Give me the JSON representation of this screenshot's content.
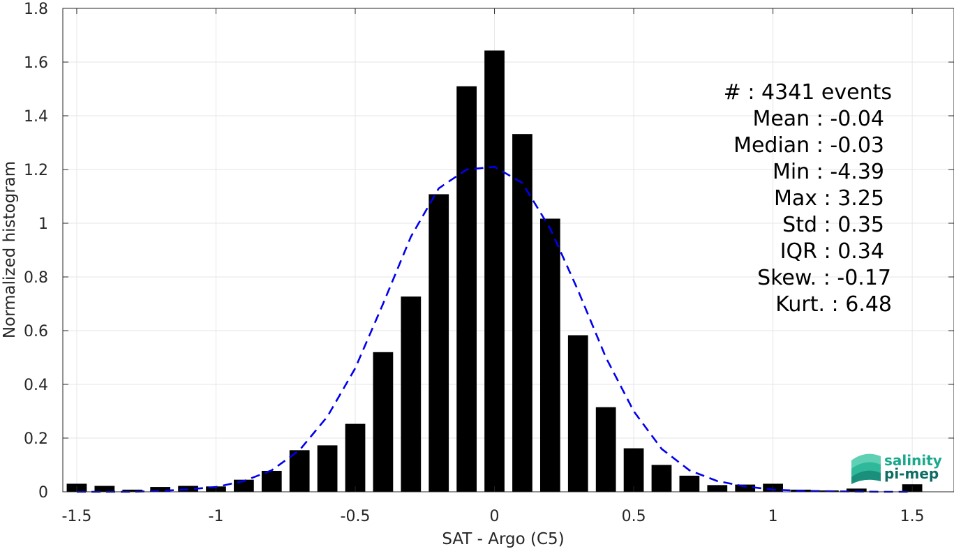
{
  "chart_data": {
    "type": "bar",
    "xlabel": "SAT - Argo (C5)",
    "ylabel": "Normalized histogram",
    "xlim": [
      -1.55,
      1.65
    ],
    "ylim": [
      0,
      1.8
    ],
    "xticks": [
      -1.5,
      -1,
      -0.5,
      0,
      0.5,
      1,
      1.5
    ],
    "xtick_labels": [
      "-1.5",
      "-1",
      "-0.5",
      "0",
      "0.5",
      "1",
      "1.5"
    ],
    "yticks": [
      0,
      0.2,
      0.4,
      0.6,
      0.8,
      1,
      1.2,
      1.4,
      1.6,
      1.8
    ],
    "ytick_labels": [
      "0",
      "0.2",
      "0.4",
      "0.6",
      "0.8",
      "1",
      "1.2",
      "1.4",
      "1.6",
      "1.8"
    ],
    "grid": true,
    "bar_color": "#000000",
    "bars": {
      "x": [
        -1.5,
        -1.4,
        -1.3,
        -1.2,
        -1.1,
        -1.0,
        -0.9,
        -0.8,
        -0.7,
        -0.6,
        -0.5,
        -0.4,
        -0.3,
        -0.2,
        -0.1,
        0.0,
        0.1,
        0.2,
        0.3,
        0.4,
        0.5,
        0.6,
        0.7,
        0.8,
        0.9,
        1.0,
        1.1,
        1.2,
        1.3,
        1.5
      ],
      "values": [
        0.03,
        0.022,
        0.008,
        0.018,
        0.022,
        0.02,
        0.045,
        0.078,
        0.155,
        0.173,
        0.253,
        0.52,
        0.727,
        1.108,
        1.51,
        1.643,
        1.332,
        1.017,
        0.583,
        0.315,
        0.162,
        0.1,
        0.06,
        0.025,
        0.027,
        0.03,
        0.008,
        0.005,
        0.012,
        0.028
      ]
    },
    "fit_curve": {
      "color": "#0000ee",
      "style": "dashed",
      "x": [
        -1.5,
        -1.4,
        -1.3,
        -1.2,
        -1.1,
        -1.0,
        -0.9,
        -0.8,
        -0.7,
        -0.6,
        -0.5,
        -0.4,
        -0.3,
        -0.2,
        -0.1,
        0.0,
        0.1,
        0.2,
        0.3,
        0.4,
        0.5,
        0.6,
        0.7,
        0.8,
        0.9,
        1.0,
        1.1,
        1.2,
        1.3,
        1.4,
        1.5
      ],
      "y": [
        0.0,
        0.0,
        0.0,
        0.003,
        0.009,
        0.018,
        0.04,
        0.08,
        0.155,
        0.28,
        0.46,
        0.7,
        0.95,
        1.13,
        1.2,
        1.21,
        1.15,
        0.98,
        0.75,
        0.5,
        0.3,
        0.16,
        0.08,
        0.04,
        0.02,
        0.008,
        0.004,
        0.002,
        0.001,
        0.0,
        0.0
      ]
    },
    "annotations": [
      "#  : 4341 events",
      "Mean : -0.04",
      "Median : -0.03",
      "Min : -4.39",
      "Max : 3.25",
      "Std : 0.35",
      "IQR : 0.34",
      "Skew. : -0.17",
      "Kurt. : 6.48"
    ]
  },
  "logo": {
    "line1": "salinity",
    "line2": "pi-mep",
    "color1": "#1aa88c",
    "color2": "#0f6b63"
  }
}
